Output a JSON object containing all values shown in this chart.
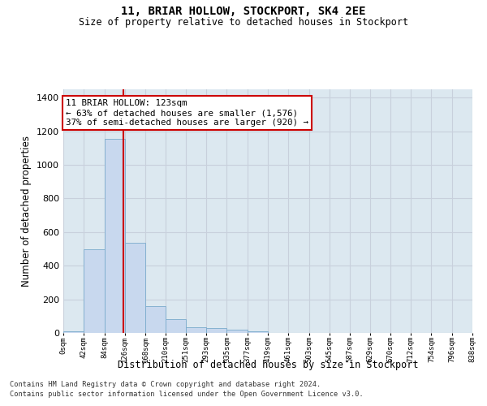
{
  "title": "11, BRIAR HOLLOW, STOCKPORT, SK4 2EE",
  "subtitle": "Size of property relative to detached houses in Stockport",
  "xlabel": "Distribution of detached houses by size in Stockport",
  "ylabel": "Number of detached properties",
  "footer_line1": "Contains HM Land Registry data © Crown copyright and database right 2024.",
  "footer_line2": "Contains public sector information licensed under the Open Government Licence v3.0.",
  "annotation_line1": "11 BRIAR HOLLOW: 123sqm",
  "annotation_line2": "← 63% of detached houses are smaller (1,576)",
  "annotation_line3": "37% of semi-detached houses are larger (920) →",
  "bar_color": "#c8d8ee",
  "bar_edge_color": "#7aabcc",
  "grid_color": "#c8d0dc",
  "ref_line_color": "#cc0000",
  "ref_line_x": 123,
  "bin_edges": [
    0,
    42,
    84,
    126,
    168,
    210,
    251,
    293,
    335,
    377,
    419,
    461,
    503,
    545,
    587,
    629,
    670,
    712,
    754,
    796,
    838
  ],
  "bin_labels": [
    "0sqm",
    "42sqm",
    "84sqm",
    "126sqm",
    "168sqm",
    "210sqm",
    "251sqm",
    "293sqm",
    "335sqm",
    "377sqm",
    "419sqm",
    "461sqm",
    "503sqm",
    "545sqm",
    "587sqm",
    "629sqm",
    "670sqm",
    "712sqm",
    "754sqm",
    "796sqm",
    "838sqm"
  ],
  "bar_heights": [
    10,
    500,
    1155,
    535,
    160,
    80,
    33,
    27,
    20,
    12,
    0,
    0,
    0,
    0,
    0,
    0,
    0,
    0,
    0,
    0
  ],
  "ylim": [
    0,
    1450
  ],
  "yticks": [
    0,
    200,
    400,
    600,
    800,
    1000,
    1200,
    1400
  ],
  "background_color": "#dce8f0",
  "fig_background": "#ffffff"
}
